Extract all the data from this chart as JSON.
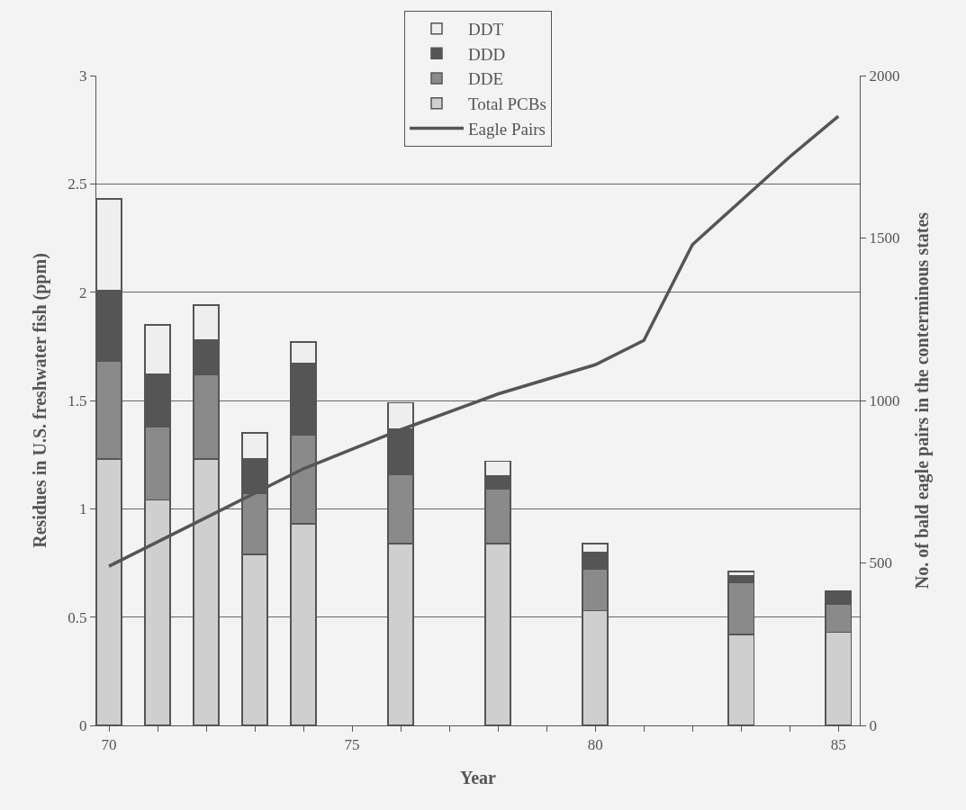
{
  "chart_data": {
    "type": "bar",
    "stacked": true,
    "xlabel": "Year",
    "ylabel": "Residues in U.S. freshwater fish (ppm)",
    "y2label": "No. of bald eagle pairs in the conterminous states",
    "x": [
      70,
      71,
      72,
      73,
      74,
      76,
      78,
      80,
      83,
      85
    ],
    "series": [
      {
        "name": "Total PCBs",
        "color": "#cfcfcf",
        "values": [
          1.23,
          1.04,
          1.23,
          0.79,
          0.93,
          0.84,
          0.84,
          0.53,
          0.42,
          0.43
        ]
      },
      {
        "name": "DDE",
        "color": "#8a8a8a",
        "values": [
          0.45,
          0.34,
          0.39,
          0.28,
          0.41,
          0.32,
          0.25,
          0.19,
          0.24,
          0.13
        ]
      },
      {
        "name": "DDD",
        "color": "#555555",
        "values": [
          0.33,
          0.24,
          0.16,
          0.16,
          0.33,
          0.21,
          0.06,
          0.08,
          0.03,
          0.06
        ]
      },
      {
        "name": "DDT",
        "color": "#eeeeee",
        "values": [
          0.42,
          0.23,
          0.16,
          0.12,
          0.1,
          0.12,
          0.07,
          0.04,
          0.02,
          null
        ]
      },
      {
        "name": "Eagle Pairs",
        "type": "line",
        "axis": "y2",
        "color": "#555555",
        "marker": "none",
        "line_style": "solid",
        "x": [
          70,
          74,
          76,
          78,
          80,
          81,
          82,
          84,
          85
        ],
        "values": [
          490,
          790,
          910,
          1020,
          1110,
          1185,
          1480,
          1750,
          1875
        ]
      }
    ],
    "xlim": [
      69.74,
      85.44
    ],
    "xticks": [
      70,
      {
        "value": 71,
        "label": null
      },
      {
        "value": 72,
        "label": null
      },
      {
        "value": 73,
        "label": null
      },
      {
        "value": 74,
        "label": null
      },
      75,
      {
        "value": 76,
        "label": null
      },
      {
        "value": 77,
        "label": null
      },
      {
        "value": 78,
        "label": null
      },
      {
        "value": 79,
        "label": null
      },
      80,
      {
        "value": 81,
        "label": null
      },
      {
        "value": 82,
        "label": null
      },
      {
        "value": 83,
        "label": null
      },
      {
        "value": 84,
        "label": null
      },
      85
    ],
    "ylim": [
      0,
      3
    ],
    "yticks": [
      0,
      0.5,
      1,
      1.5,
      2,
      2.5,
      3
    ],
    "y2lim": [
      0,
      2000
    ],
    "y2ticks": [
      0,
      500,
      1000,
      1500,
      2000
    ],
    "grid": "y",
    "legend": "top"
  }
}
